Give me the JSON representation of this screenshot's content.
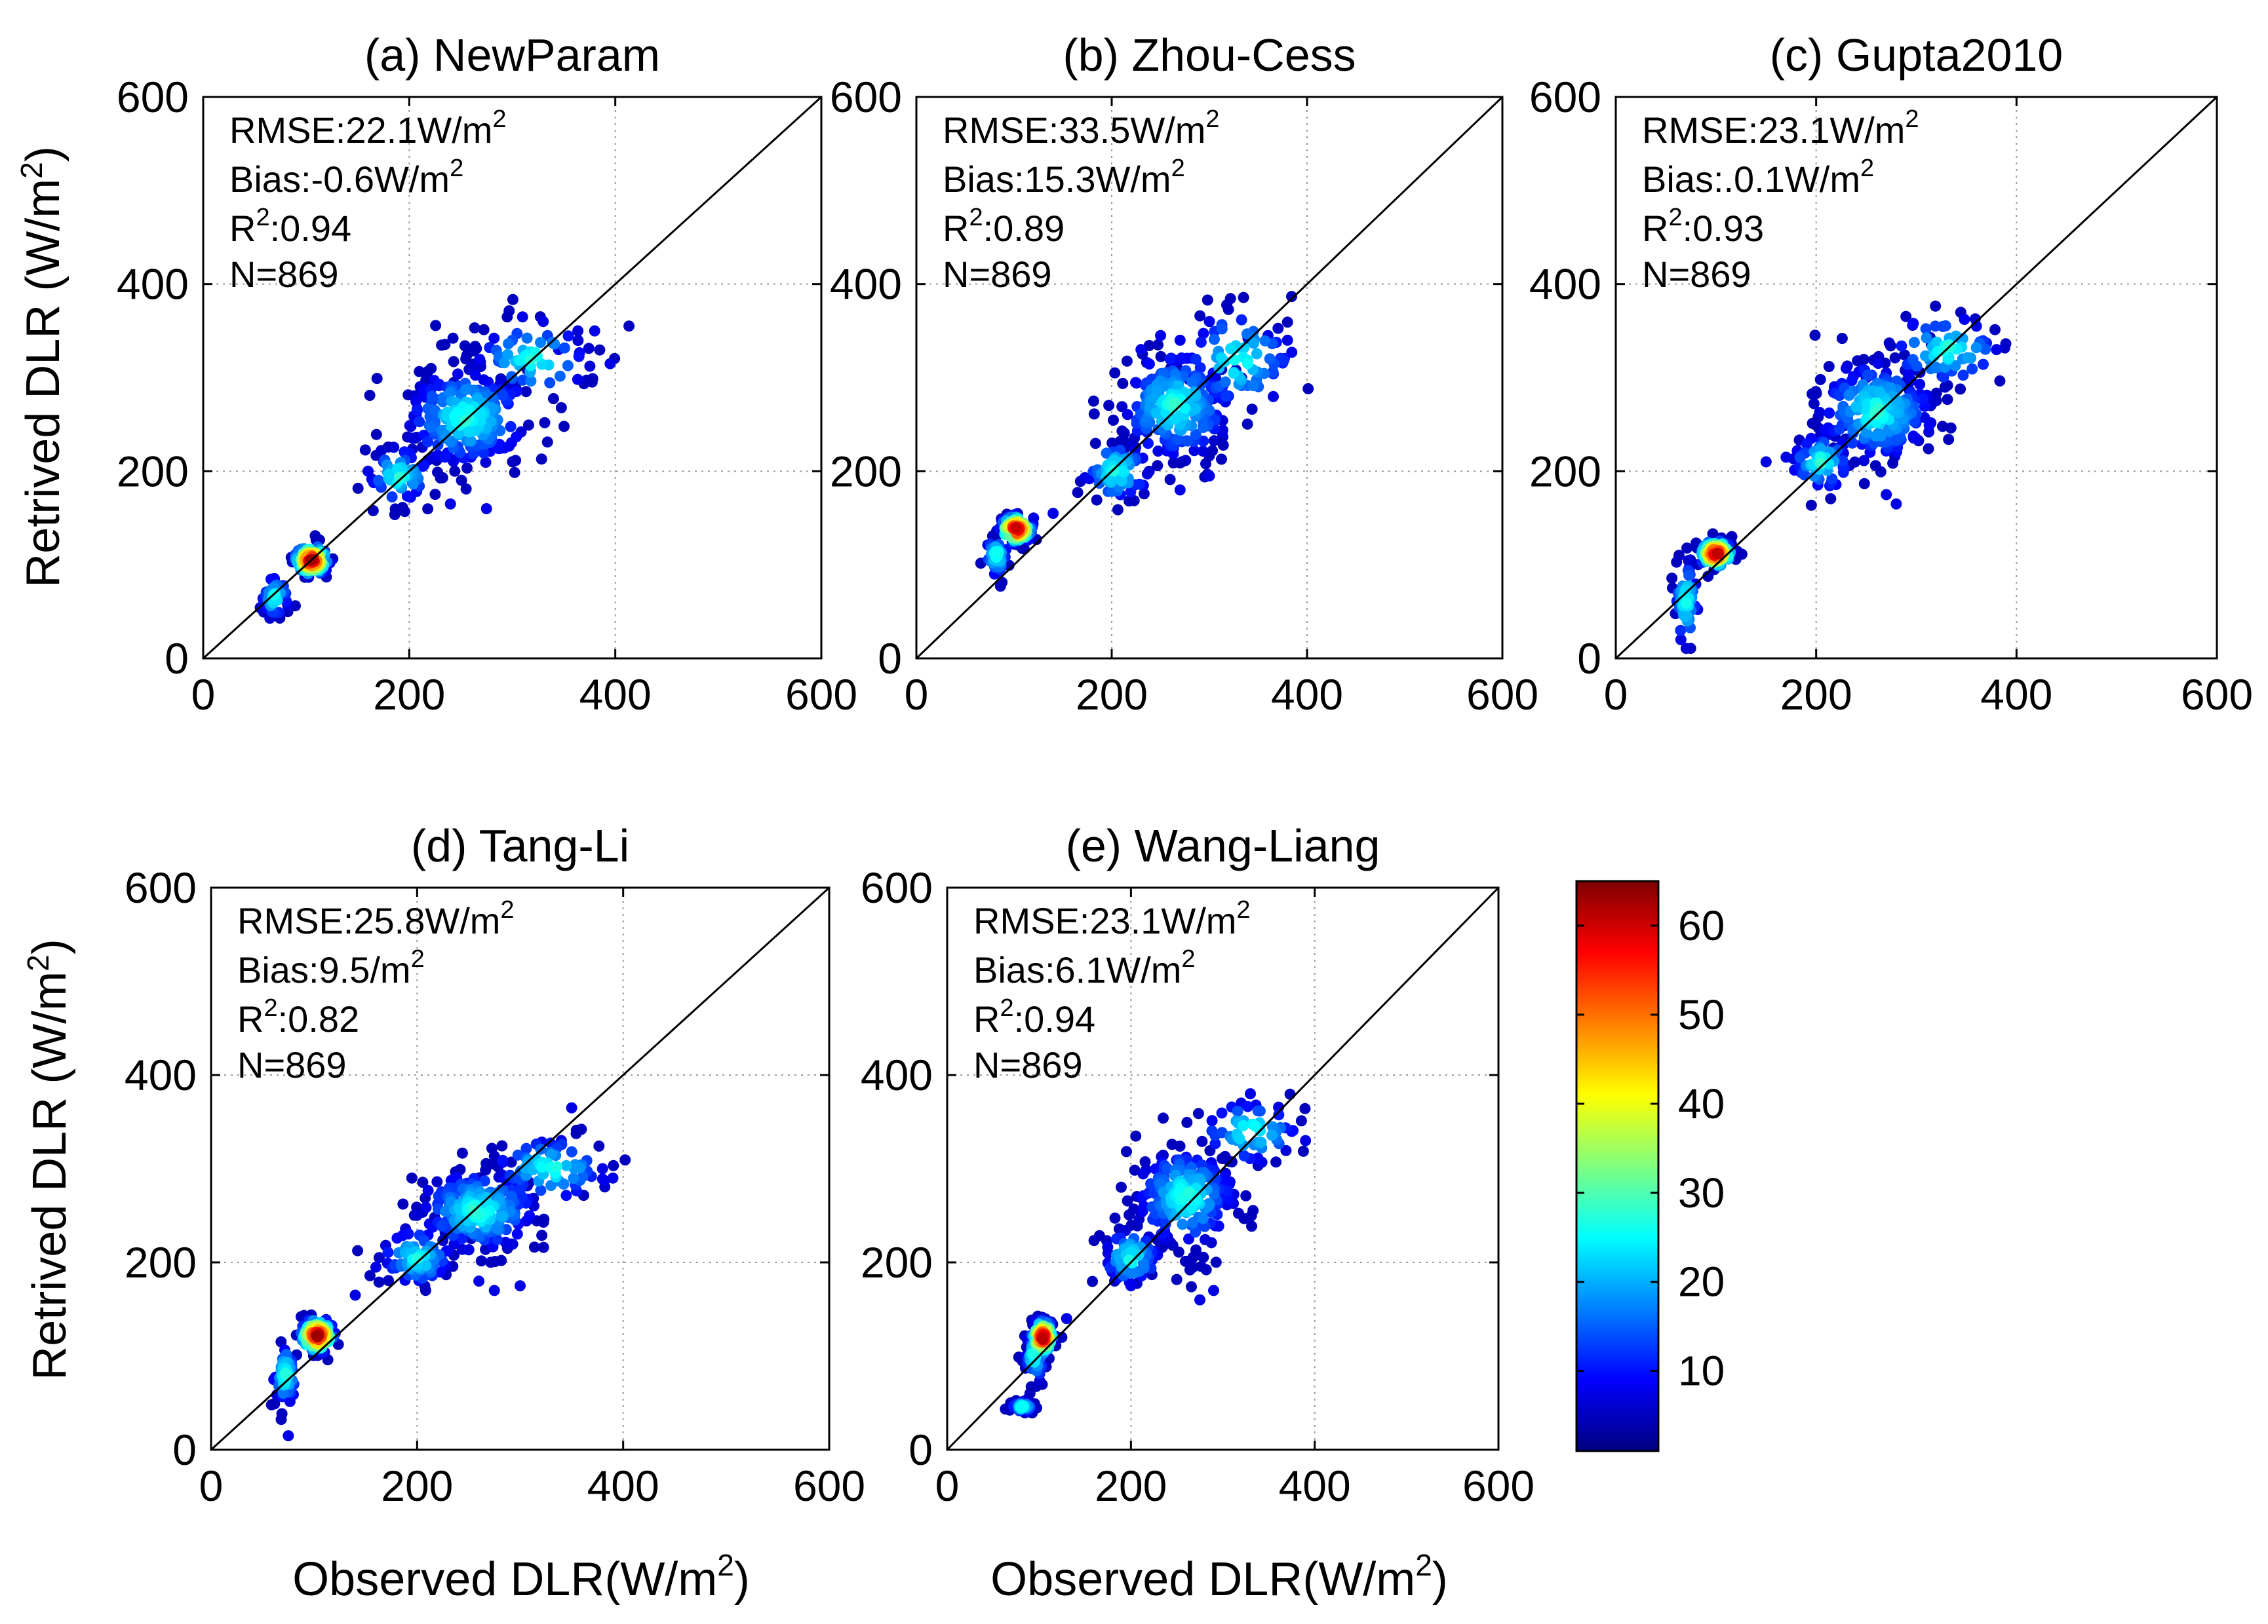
{
  "figure": {
    "ylabel": "Retrived DLR (W/m",
    "ylabel_sup": "2",
    "ylabel_end": ")",
    "xlabel": "Observed DLR(W/m",
    "xlabel_sup": "2",
    "xlabel_end": ")",
    "ticks": [
      "0",
      "200",
      "400",
      "600"
    ],
    "stat_unit": "W/m",
    "stat_sup": "2",
    "r2_label": "R",
    "r2_sup": "2",
    "colorbar_ticks": [
      "10",
      "20",
      "30",
      "40",
      "50",
      "60"
    ]
  },
  "chart_data": [
    {
      "type": "scatter",
      "title": "(a) NewParam",
      "xlabel": "",
      "ylabel": "Retrived DLR (W/m2)",
      "xlim": [
        0,
        600
      ],
      "ylim": [
        0,
        600
      ],
      "grid": true,
      "stats": {
        "rmse": "RMSE:22.1W/m",
        "bias": "Bias:-0.6W/m",
        "r2": ":0.94",
        "n": "N=869"
      },
      "clusters": [
        {
          "x": 70,
          "y": 65,
          "sx": 7,
          "sy": 12,
          "n": 45
        },
        {
          "x": 105,
          "y": 105,
          "sx": 9,
          "sy": 9,
          "n": 110,
          "dense": true
        },
        {
          "x": 190,
          "y": 195,
          "sx": 16,
          "sy": 16,
          "n": 60
        },
        {
          "x": 255,
          "y": 258,
          "sx": 30,
          "sy": 28,
          "n": 260
        },
        {
          "x": 320,
          "y": 320,
          "sx": 30,
          "sy": 22,
          "n": 70
        }
      ],
      "outliers": [
        [
          240,
          165
        ],
        [
          275,
          160
        ],
        [
          380,
          350
        ],
        [
          395,
          315
        ],
        [
          310,
          365
        ],
        [
          330,
          360
        ],
        [
          160,
          200
        ],
        [
          345,
          330
        ]
      ]
    },
    {
      "type": "scatter",
      "title": "(b) Zhou-Cess",
      "xlim": [
        0,
        600
      ],
      "ylim": [
        0,
        600
      ],
      "grid": true,
      "stats": {
        "rmse": "RMSE:33.5W/m",
        "bias": "Bias:15.3W/m",
        "r2": ":0.89",
        "n": "N=869"
      },
      "clusters": [
        {
          "x": 82,
          "y": 110,
          "sx": 6,
          "sy": 12,
          "n": 45
        },
        {
          "x": 102,
          "y": 138,
          "sx": 9,
          "sy": 8,
          "n": 110,
          "dense": true
        },
        {
          "x": 205,
          "y": 200,
          "sx": 18,
          "sy": 18,
          "n": 70
        },
        {
          "x": 265,
          "y": 270,
          "sx": 30,
          "sy": 30,
          "n": 240
        },
        {
          "x": 330,
          "y": 320,
          "sx": 30,
          "sy": 28,
          "n": 80
        }
      ],
      "outliers": [
        [
          230,
          330
        ],
        [
          250,
          345
        ],
        [
          270,
          340
        ],
        [
          300,
          360
        ],
        [
          120,
          150
        ],
        [
          140,
          155
        ],
        [
          270,
          180
        ],
        [
          300,
          195
        ],
        [
          380,
          340
        ],
        [
          360,
          345
        ]
      ]
    },
    {
      "type": "scatter",
      "title": "(c) Gupta2010",
      "xlim": [
        0,
        600
      ],
      "ylim": [
        0,
        600
      ],
      "grid": true,
      "stats": {
        "rmse": "RMSE:23.1W/m",
        "bias": "Bias:.0.1W/m",
        "r2": ":0.93",
        "n": "N=869"
      },
      "clusters": [
        {
          "x": 70,
          "y": 60,
          "sx": 6,
          "sy": 25,
          "n": 60
        },
        {
          "x": 100,
          "y": 112,
          "sx": 9,
          "sy": 8,
          "n": 110,
          "dense": true
        },
        {
          "x": 205,
          "y": 210,
          "sx": 16,
          "sy": 16,
          "n": 60
        },
        {
          "x": 260,
          "y": 265,
          "sx": 30,
          "sy": 28,
          "n": 240
        },
        {
          "x": 330,
          "y": 330,
          "sx": 30,
          "sy": 20,
          "n": 70
        }
      ],
      "outliers": [
        [
          230,
          310
        ],
        [
          250,
          300
        ],
        [
          270,
          305
        ],
        [
          280,
          165
        ],
        [
          270,
          175
        ],
        [
          380,
          330
        ],
        [
          360,
          355
        ],
        [
          150,
          210
        ],
        [
          170,
          215
        ],
        [
          65,
          20
        ]
      ]
    },
    {
      "type": "scatter",
      "title": "(d) Tang-Li",
      "xlabel": "Observed DLR(W/m2)",
      "ylabel": "Retrived DLR (W/m2)",
      "xlim": [
        0,
        600
      ],
      "ylim": [
        0,
        600
      ],
      "grid": true,
      "stats": {
        "rmse": "RMSE:25.8W/m",
        "bias": "Bias:9.5/m",
        "r2": ":0.82",
        "n": "N=869"
      },
      "clusters": [
        {
          "x": 72,
          "y": 80,
          "sx": 6,
          "sy": 18,
          "n": 60
        },
        {
          "x": 103,
          "y": 122,
          "sx": 9,
          "sy": 10,
          "n": 120,
          "dense": true
        },
        {
          "x": 200,
          "y": 205,
          "sx": 18,
          "sy": 16,
          "n": 80
        },
        {
          "x": 260,
          "y": 255,
          "sx": 30,
          "sy": 22,
          "n": 240
        },
        {
          "x": 330,
          "y": 300,
          "sx": 30,
          "sy": 18,
          "n": 70
        }
      ],
      "outliers": [
        [
          275,
          170
        ],
        [
          260,
          180
        ],
        [
          300,
          175
        ],
        [
          390,
          290
        ],
        [
          380,
          300
        ],
        [
          350,
          365
        ],
        [
          340,
          330
        ],
        [
          75,
          15
        ],
        [
          140,
          165
        ],
        [
          160,
          195
        ]
      ]
    },
    {
      "type": "scatter",
      "title": "(e) Wang-Liang",
      "xlabel": "Observed DLR(W/m2)",
      "xlim": [
        0,
        600
      ],
      "ylim": [
        0,
        600
      ],
      "grid": true,
      "stats": {
        "rmse": "RMSE:23.1W/m",
        "bias": "Bias:6.1W/m",
        "r2": ":0.94",
        "n": "N=869"
      },
      "clusters": [
        {
          "x": 82,
          "y": 46,
          "sx": 6,
          "sy": 3,
          "n": 45
        },
        {
          "x": 95,
          "y": 100,
          "sx": 6,
          "sy": 15,
          "n": 50
        },
        {
          "x": 104,
          "y": 120,
          "sx": 7,
          "sy": 10,
          "n": 110,
          "dense": true
        },
        {
          "x": 200,
          "y": 205,
          "sx": 16,
          "sy": 16,
          "n": 70
        },
        {
          "x": 260,
          "y": 270,
          "sx": 28,
          "sy": 28,
          "n": 240
        },
        {
          "x": 330,
          "y": 340,
          "sx": 28,
          "sy": 18,
          "n": 60
        }
      ],
      "outliers": [
        [
          275,
          160
        ],
        [
          290,
          170
        ],
        [
          330,
          380
        ],
        [
          320,
          370
        ],
        [
          390,
          330
        ],
        [
          175,
          210
        ],
        [
          200,
          175
        ],
        [
          130,
          140
        ]
      ]
    },
    {
      "type": "colorbar",
      "range": [
        1,
        65
      ],
      "ticks": [
        10,
        20,
        30,
        40,
        50,
        60
      ],
      "colormap": "jet"
    }
  ]
}
